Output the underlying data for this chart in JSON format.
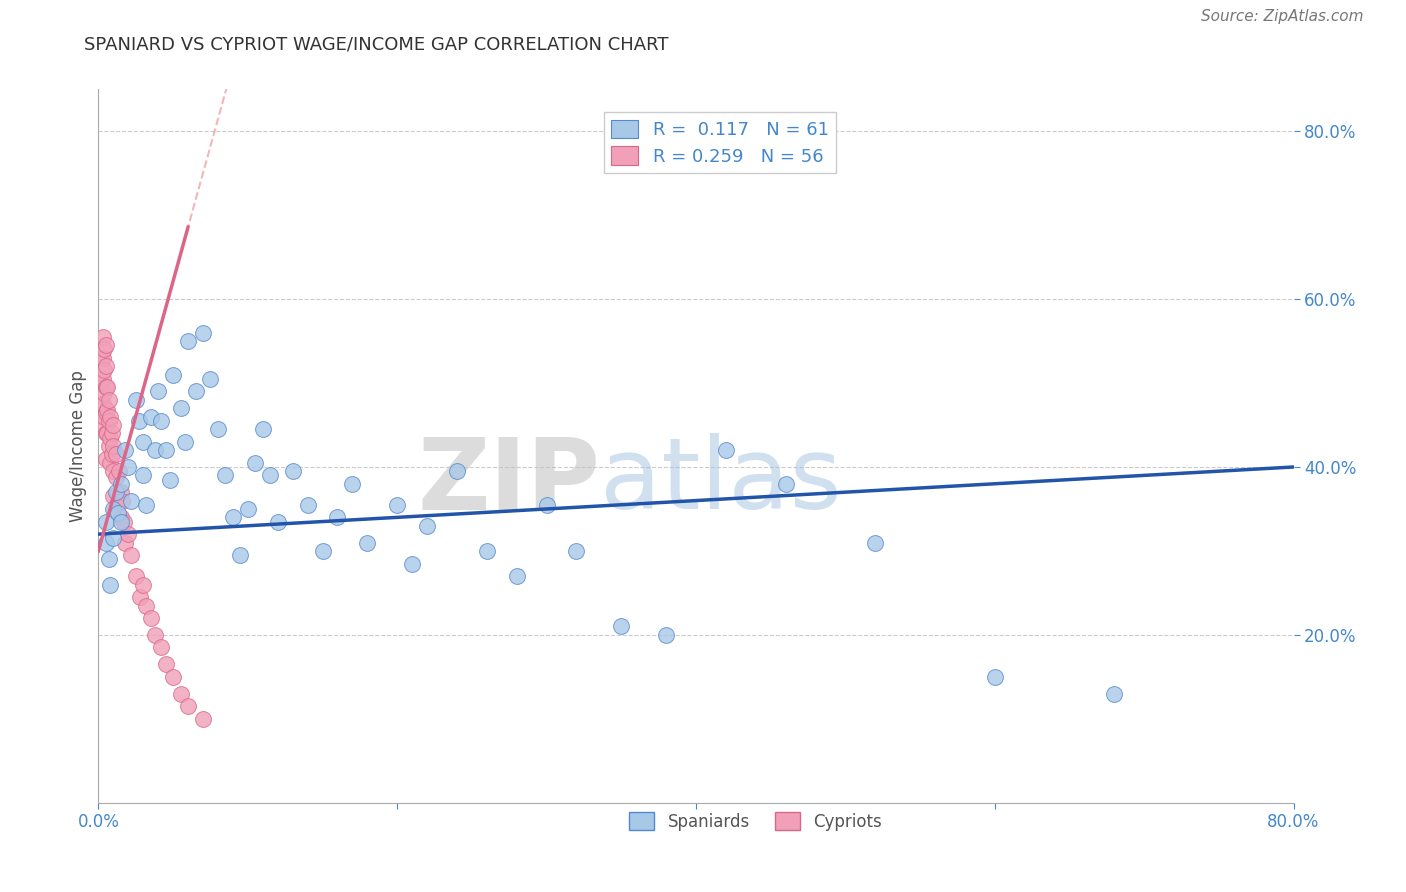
{
  "title": "SPANIARD VS CYPRIOT WAGE/INCOME GAP CORRELATION CHART",
  "source": "Source: ZipAtlas.com",
  "ylabel": "Wage/Income Gap",
  "legend_entries": [
    {
      "label": "Spaniards",
      "R": "0.117",
      "N": "61"
    },
    {
      "label": "Cypriots",
      "R": "0.259",
      "N": "56"
    }
  ],
  "blue_scatter_color": "#a8c8e8",
  "blue_scatter_edge": "#5588cc",
  "pink_scatter_color": "#f0a0b8",
  "pink_scatter_edge": "#dd6688",
  "blue_line_color": "#2255aa",
  "pink_line_color": "#dd6688",
  "watermark_zip": "ZIP",
  "watermark_atlas": "atlas",
  "spaniards_x": [
    0.005,
    0.005,
    0.007,
    0.008,
    0.01,
    0.01,
    0.012,
    0.013,
    0.015,
    0.015,
    0.018,
    0.02,
    0.022,
    0.025,
    0.027,
    0.03,
    0.03,
    0.032,
    0.035,
    0.038,
    0.04,
    0.042,
    0.045,
    0.048,
    0.05,
    0.055,
    0.058,
    0.06,
    0.065,
    0.07,
    0.075,
    0.08,
    0.085,
    0.09,
    0.095,
    0.1,
    0.105,
    0.11,
    0.115,
    0.12,
    0.13,
    0.14,
    0.15,
    0.16,
    0.17,
    0.18,
    0.2,
    0.21,
    0.22,
    0.24,
    0.26,
    0.28,
    0.3,
    0.32,
    0.35,
    0.38,
    0.42,
    0.46,
    0.52,
    0.6,
    0.68
  ],
  "spaniards_y": [
    0.335,
    0.31,
    0.29,
    0.26,
    0.35,
    0.315,
    0.37,
    0.345,
    0.38,
    0.335,
    0.42,
    0.4,
    0.36,
    0.48,
    0.455,
    0.43,
    0.39,
    0.355,
    0.46,
    0.42,
    0.49,
    0.455,
    0.42,
    0.385,
    0.51,
    0.47,
    0.43,
    0.55,
    0.49,
    0.56,
    0.505,
    0.445,
    0.39,
    0.34,
    0.295,
    0.35,
    0.405,
    0.445,
    0.39,
    0.335,
    0.395,
    0.355,
    0.3,
    0.34,
    0.38,
    0.31,
    0.355,
    0.285,
    0.33,
    0.395,
    0.3,
    0.27,
    0.355,
    0.3,
    0.21,
    0.2,
    0.42,
    0.38,
    0.31,
    0.15,
    0.13
  ],
  "cypriots_x": [
    0.002,
    0.002,
    0.002,
    0.003,
    0.003,
    0.003,
    0.003,
    0.003,
    0.004,
    0.004,
    0.004,
    0.004,
    0.005,
    0.005,
    0.005,
    0.005,
    0.005,
    0.005,
    0.006,
    0.006,
    0.006,
    0.007,
    0.007,
    0.007,
    0.008,
    0.008,
    0.008,
    0.009,
    0.009,
    0.01,
    0.01,
    0.01,
    0.01,
    0.012,
    0.012,
    0.013,
    0.014,
    0.015,
    0.015,
    0.016,
    0.017,
    0.018,
    0.02,
    0.022,
    0.025,
    0.028,
    0.03,
    0.032,
    0.035,
    0.038,
    0.042,
    0.045,
    0.05,
    0.055,
    0.06,
    0.07
  ],
  "cypriots_y": [
    0.53,
    0.5,
    0.475,
    0.555,
    0.53,
    0.505,
    0.475,
    0.45,
    0.54,
    0.515,
    0.488,
    0.46,
    0.545,
    0.52,
    0.495,
    0.465,
    0.44,
    0.41,
    0.495,
    0.468,
    0.44,
    0.48,
    0.455,
    0.425,
    0.46,
    0.435,
    0.405,
    0.44,
    0.415,
    0.45,
    0.425,
    0.395,
    0.365,
    0.415,
    0.388,
    0.358,
    0.395,
    0.37,
    0.34,
    0.36,
    0.335,
    0.31,
    0.32,
    0.295,
    0.27,
    0.245,
    0.26,
    0.235,
    0.22,
    0.2,
    0.185,
    0.165,
    0.15,
    0.13,
    0.115,
    0.1
  ],
  "xlim": [
    0.0,
    0.8
  ],
  "ylim": [
    0.0,
    0.85
  ],
  "xticks": [
    0.0,
    0.2,
    0.4,
    0.6,
    0.8
  ],
  "yticks": [
    0.2,
    0.4,
    0.6,
    0.8
  ]
}
